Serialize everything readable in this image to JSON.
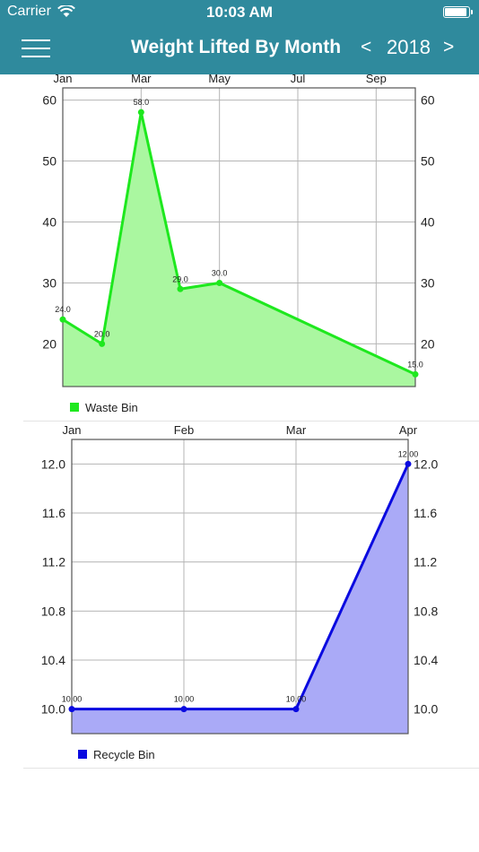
{
  "status_bar": {
    "carrier": "Carrier",
    "time": "10:03 AM"
  },
  "header": {
    "title": "Weight Lifted By Month",
    "prev": "<",
    "year": "2018",
    "next": ">"
  },
  "colors": {
    "header": "#2f8a9d",
    "waste": "#1ee81e",
    "waste_fill": "#aaf7a0",
    "recycle": "#0a0ae0",
    "recycle_fill": "#aaaaf7"
  },
  "chart_data": [
    {
      "type": "area",
      "x_tick_labels": [
        "Jan",
        "Mar",
        "May",
        "Jul",
        "Sep"
      ],
      "x_range": [
        1,
        10
      ],
      "x": [
        1,
        2,
        3,
        4,
        5,
        10
      ],
      "point_labels": [
        "24.0",
        "20.0",
        "58.0",
        "29.0",
        "30.0",
        "15.0"
      ],
      "series": [
        {
          "name": "Waste Bin",
          "values": [
            24,
            20,
            58,
            29,
            30,
            15
          ]
        }
      ],
      "ylim": [
        13,
        62
      ],
      "y_ticks": [
        "20",
        "30",
        "40",
        "50",
        "60"
      ],
      "grid": true,
      "legend": "bottom-left"
    },
    {
      "type": "area",
      "x_tick_labels": [
        "Jan",
        "Feb",
        "Mar",
        "Apr"
      ],
      "x_range": [
        1,
        4
      ],
      "x": [
        1,
        2,
        3,
        4
      ],
      "point_labels": [
        "10.00",
        "10.00",
        "10.00",
        "12.00"
      ],
      "series": [
        {
          "name": "Recycle Bin",
          "values": [
            10,
            10,
            10,
            12
          ]
        }
      ],
      "ylim": [
        9.8,
        12.2
      ],
      "y_ticks": [
        "10.0",
        "10.4",
        "10.8",
        "11.2",
        "11.6",
        "12.0"
      ],
      "grid": true,
      "legend": "bottom-left"
    }
  ]
}
